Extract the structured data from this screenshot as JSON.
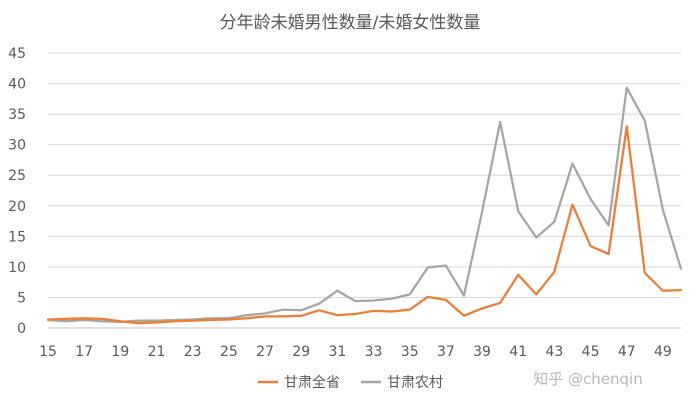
{
  "chart_data": {
    "type": "line",
    "title": "分年龄未婚男性数量/未婚女性数量",
    "xlabel": "",
    "ylabel": "",
    "x": [
      15,
      16,
      17,
      18,
      19,
      20,
      21,
      22,
      23,
      24,
      25,
      26,
      27,
      28,
      29,
      30,
      31,
      32,
      33,
      34,
      35,
      36,
      37,
      38,
      39,
      40,
      41,
      42,
      43,
      44,
      45,
      46,
      47,
      48,
      49,
      50
    ],
    "x_tick_labels": [
      "15",
      "17",
      "19",
      "21",
      "23",
      "25",
      "27",
      "29",
      "31",
      "33",
      "35",
      "37",
      "39",
      "41",
      "43",
      "45",
      "47",
      "49"
    ],
    "y_ticks": [
      0,
      5,
      10,
      15,
      20,
      25,
      30,
      35,
      40,
      45
    ],
    "ylim": [
      0,
      45
    ],
    "grid": true,
    "legend_position": "bottom",
    "series": [
      {
        "name": "甘肃全省",
        "color": "#ed7d31",
        "values": [
          1.4,
          1.5,
          1.6,
          1.5,
          1.1,
          0.8,
          0.9,
          1.1,
          1.2,
          1.3,
          1.4,
          1.6,
          1.9,
          1.9,
          2.0,
          2.9,
          2.1,
          2.3,
          2.8,
          2.7,
          3.0,
          5.1,
          4.6,
          2.0,
          3.2,
          4.1,
          8.7,
          5.5,
          9.2,
          20.2,
          13.4,
          12.1,
          33.0,
          9.0,
          6.1,
          6.2
        ]
      },
      {
        "name": "甘肃农村",
        "color": "#a5a5a5",
        "values": [
          1.3,
          1.1,
          1.3,
          1.1,
          1.0,
          1.2,
          1.2,
          1.3,
          1.4,
          1.6,
          1.6,
          2.1,
          2.4,
          3.0,
          2.9,
          4.0,
          6.1,
          4.4,
          4.5,
          4.8,
          5.5,
          9.9,
          10.2,
          5.3,
          19.0,
          33.7,
          19.1,
          14.8,
          17.4,
          26.9,
          21.1,
          16.8,
          39.3,
          33.9,
          19.3,
          9.7
        ]
      }
    ]
  },
  "watermark": "知乎 @chenqin"
}
